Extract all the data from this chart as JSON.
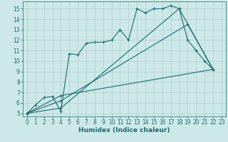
{
  "title": "",
  "xlabel": "Humidex (Indice chaleur)",
  "bg_color": "#cce8e8",
  "grid_color": "#b0cccc",
  "line_color": "#1a6b6b",
  "xlim": [
    -0.5,
    23.5
  ],
  "ylim": [
    4.7,
    15.7
  ],
  "xticks": [
    0,
    1,
    2,
    3,
    4,
    5,
    6,
    7,
    8,
    9,
    10,
    11,
    12,
    13,
    14,
    15,
    16,
    17,
    18,
    19,
    20,
    21,
    22,
    23
  ],
  "yticks": [
    5,
    6,
    7,
    8,
    9,
    10,
    11,
    12,
    13,
    14,
    15
  ],
  "line1_x": [
    0,
    1,
    2,
    3,
    4,
    5,
    6,
    7,
    8,
    9,
    10,
    11,
    12,
    13,
    14,
    15,
    16,
    17,
    18,
    19,
    20,
    21,
    22
  ],
  "line1_y": [
    5.0,
    5.8,
    6.5,
    6.6,
    5.2,
    10.7,
    10.6,
    11.7,
    11.8,
    11.8,
    12.0,
    13.0,
    12.0,
    15.0,
    14.6,
    15.0,
    15.0,
    15.3,
    15.0,
    12.0,
    11.0,
    10.0,
    9.2
  ],
  "line2_x": [
    0,
    4,
    18,
    22
  ],
  "line2_y": [
    5.0,
    5.5,
    15.0,
    9.2
  ],
  "line3_x": [
    0,
    4,
    19,
    22
  ],
  "line3_y": [
    5.0,
    6.2,
    13.5,
    9.2
  ],
  "line4_x": [
    0,
    4,
    22
  ],
  "line4_y": [
    5.0,
    6.7,
    9.2
  ],
  "xlabel_fontsize": 6.5,
  "tick_fontsize": 5.5
}
